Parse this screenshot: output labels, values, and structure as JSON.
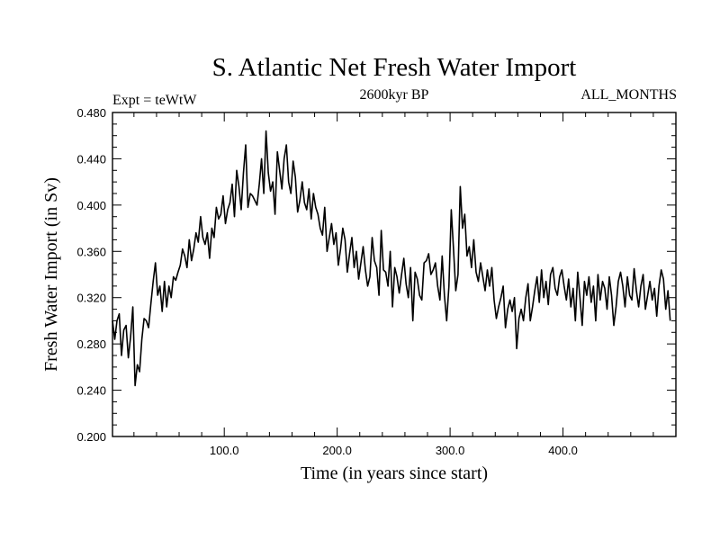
{
  "chart_data": {
    "type": "line",
    "title": "S. Atlantic Net Fresh Water Import",
    "subtitle": "2600kyr BP",
    "left_label": "Expt = teWtW",
    "right_label": "ALL_MONTHS",
    "xlabel": "Time (in years since start)",
    "ylabel": "Fresh Water Import (in Sv)",
    "xlim": [
      1,
      500
    ],
    "ylim": [
      0.2,
      0.48
    ],
    "x_ticks": [
      100,
      200,
      300,
      400
    ],
    "x_tick_labels": [
      "100.0",
      "200.0",
      "300.0",
      "400.0"
    ],
    "y_ticks": [
      0.2,
      0.24,
      0.28,
      0.32,
      0.36,
      0.4,
      0.44,
      0.48
    ],
    "y_tick_labels": [
      "0.200",
      "0.240",
      "0.280",
      "0.320",
      "0.360",
      "0.400",
      "0.440",
      "0.480"
    ],
    "series": [
      {
        "name": "Fresh Water Import",
        "x_start": 1,
        "x_step": 2,
        "values": [
          0.3,
          0.284,
          0.3,
          0.306,
          0.27,
          0.292,
          0.296,
          0.268,
          0.286,
          0.312,
          0.244,
          0.262,
          0.256,
          0.284,
          0.302,
          0.3,
          0.294,
          0.315,
          0.334,
          0.35,
          0.322,
          0.33,
          0.308,
          0.334,
          0.312,
          0.33,
          0.32,
          0.338,
          0.335,
          0.342,
          0.348,
          0.362,
          0.356,
          0.346,
          0.37,
          0.352,
          0.362,
          0.376,
          0.368,
          0.39,
          0.372,
          0.366,
          0.376,
          0.354,
          0.38,
          0.372,
          0.398,
          0.388,
          0.392,
          0.408,
          0.384,
          0.396,
          0.402,
          0.418,
          0.39,
          0.43,
          0.416,
          0.396,
          0.428,
          0.452,
          0.398,
          0.41,
          0.408,
          0.404,
          0.4,
          0.418,
          0.44,
          0.41,
          0.464,
          0.428,
          0.412,
          0.42,
          0.392,
          0.446,
          0.43,
          0.414,
          0.44,
          0.452,
          0.42,
          0.41,
          0.438,
          0.424,
          0.394,
          0.404,
          0.42,
          0.402,
          0.396,
          0.414,
          0.388,
          0.41,
          0.398,
          0.392,
          0.38,
          0.374,
          0.398,
          0.36,
          0.372,
          0.384,
          0.366,
          0.376,
          0.348,
          0.362,
          0.38,
          0.37,
          0.342,
          0.358,
          0.372,
          0.346,
          0.36,
          0.336,
          0.35,
          0.364,
          0.344,
          0.33,
          0.338,
          0.372,
          0.352,
          0.346,
          0.322,
          0.378,
          0.344,
          0.342,
          0.33,
          0.36,
          0.312,
          0.346,
          0.338,
          0.324,
          0.34,
          0.354,
          0.332,
          0.32,
          0.346,
          0.3,
          0.342,
          0.336,
          0.322,
          0.318,
          0.35,
          0.352,
          0.358,
          0.34,
          0.344,
          0.35,
          0.33,
          0.318,
          0.356,
          0.322,
          0.3,
          0.33,
          0.396,
          0.362,
          0.326,
          0.34,
          0.416,
          0.38,
          0.392,
          0.356,
          0.364,
          0.346,
          0.37,
          0.342,
          0.334,
          0.35,
          0.338,
          0.326,
          0.344,
          0.33,
          0.346,
          0.318,
          0.302,
          0.312,
          0.32,
          0.33,
          0.294,
          0.31,
          0.318,
          0.308,
          0.32,
          0.276,
          0.302,
          0.31,
          0.3,
          0.32,
          0.332,
          0.3,
          0.312,
          0.326,
          0.338,
          0.316,
          0.344,
          0.32,
          0.334,
          0.314,
          0.34,
          0.346,
          0.328,
          0.322,
          0.338,
          0.344,
          0.33,
          0.318,
          0.336,
          0.312,
          0.328,
          0.3,
          0.342,
          0.32,
          0.296,
          0.334,
          0.322,
          0.338,
          0.316,
          0.33,
          0.3,
          0.34,
          0.318,
          0.334,
          0.328,
          0.31,
          0.338,
          0.322,
          0.296,
          0.312,
          0.334,
          0.342,
          0.33,
          0.312,
          0.338,
          0.322,
          0.318,
          0.345,
          0.326,
          0.312,
          0.33,
          0.34,
          0.31,
          0.322,
          0.334,
          0.318,
          0.328,
          0.304,
          0.33,
          0.344,
          0.336,
          0.31,
          0.326,
          0.3
        ]
      }
    ]
  }
}
